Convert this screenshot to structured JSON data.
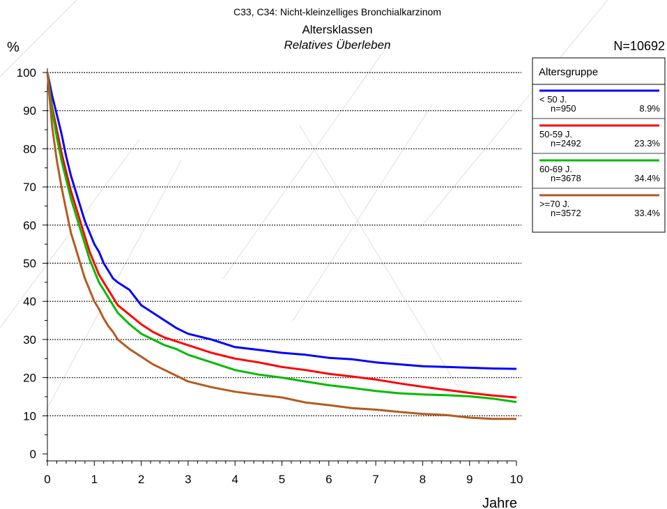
{
  "chart_data": {
    "type": "line",
    "title": "C33, C34: Nicht-kleinzelliges Bronchialkarzinom",
    "subtitle": "Altersklassen",
    "subtitle2": "Relatives Überleben",
    "n_total": "N=10692",
    "ylabel": "%",
    "xlabel": "Jahre",
    "xlim": [
      0,
      10
    ],
    "ylim": [
      0,
      100
    ],
    "x_ticks": [
      "0",
      "1",
      "2",
      "3",
      "4",
      "5",
      "6",
      "7",
      "8",
      "9",
      "10"
    ],
    "y_ticks": [
      "0",
      "10",
      "20",
      "30",
      "40",
      "50",
      "60",
      "70",
      "80",
      "90",
      "100"
    ],
    "grid": true,
    "legend_placement": "top-right",
    "legend_title": "Altersgruppe",
    "series": [
      {
        "name": "< 50 J.",
        "n": "n=950",
        "share": "8.9%",
        "color": "#0000ff",
        "x": [
          0,
          0.1,
          0.2,
          0.3,
          0.4,
          0.5,
          0.6,
          0.7,
          0.8,
          0.9,
          1.0,
          1.1,
          1.2,
          1.3,
          1.4,
          1.5,
          1.75,
          2.0,
          2.25,
          2.5,
          2.75,
          3.0,
          3.5,
          4.0,
          4.5,
          5.0,
          5.5,
          6.0,
          6.5,
          7.0,
          7.5,
          8.0,
          8.5,
          9.0,
          9.5,
          10.0
        ],
        "y": [
          100,
          94,
          89,
          84,
          78,
          73,
          69,
          65,
          61,
          58,
          55,
          53,
          50,
          48,
          46,
          45,
          43,
          39,
          37,
          35,
          33,
          31.5,
          30,
          28,
          27.3,
          26.5,
          26,
          25.2,
          24.8,
          24,
          23.5,
          23,
          22.8,
          22.6,
          22.4,
          22.3
        ]
      },
      {
        "name": "50-59 J.",
        "n": "n=2492",
        "share": "23.3%",
        "color": "#ff0000",
        "x": [
          0,
          0.1,
          0.2,
          0.3,
          0.4,
          0.5,
          0.6,
          0.7,
          0.8,
          0.9,
          1.0,
          1.1,
          1.2,
          1.3,
          1.4,
          1.5,
          1.75,
          2.0,
          2.25,
          2.5,
          2.75,
          3.0,
          3.5,
          4.0,
          4.5,
          5.0,
          5.5,
          6.0,
          6.5,
          7.0,
          7.5,
          8.0,
          8.5,
          9.0,
          9.5,
          10.0
        ],
        "y": [
          100,
          91,
          85,
          79,
          74,
          69,
          65,
          61,
          57,
          53,
          50,
          47,
          45,
          43,
          41,
          39,
          36.5,
          34,
          32,
          30.5,
          29.5,
          28.5,
          26.5,
          25,
          24,
          22.8,
          22,
          21,
          20.3,
          19.5,
          18.5,
          17.6,
          16.8,
          16,
          15.3,
          14.8
        ]
      },
      {
        "name": "60-69 J.",
        "n": "n=3678",
        "share": "34.4%",
        "color": "#00bb00",
        "x": [
          0,
          0.1,
          0.2,
          0.3,
          0.4,
          0.5,
          0.6,
          0.7,
          0.8,
          0.9,
          1.0,
          1.1,
          1.2,
          1.3,
          1.4,
          1.5,
          1.75,
          2.0,
          2.25,
          2.5,
          2.75,
          3.0,
          3.5,
          4.0,
          4.5,
          5.0,
          5.5,
          6.0,
          6.5,
          7.0,
          7.5,
          8.0,
          8.5,
          9.0,
          9.5,
          10.0
        ],
        "y": [
          100,
          90,
          83,
          77,
          72,
          67,
          63,
          59,
          55,
          51,
          48,
          45,
          43,
          41,
          39,
          37,
          34,
          31.5,
          30,
          28.5,
          27.5,
          26,
          24,
          22,
          20.8,
          20,
          19,
          18,
          17.3,
          16.5,
          15.9,
          15.6,
          15.4,
          15.1,
          14.5,
          13.6
        ]
      },
      {
        "name": ">=70 J.",
        "n": "n=3572",
        "share": "33.4%",
        "color": "#b35a1f",
        "x": [
          0,
          0.1,
          0.2,
          0.3,
          0.4,
          0.5,
          0.6,
          0.7,
          0.8,
          0.9,
          1.0,
          1.1,
          1.2,
          1.3,
          1.4,
          1.5,
          1.75,
          2.0,
          2.25,
          2.5,
          2.75,
          3.0,
          3.5,
          4.0,
          4.5,
          5.0,
          5.5,
          6.0,
          6.5,
          7.0,
          7.5,
          8.0,
          8.5,
          9.0,
          9.5,
          10.0
        ],
        "y": [
          100,
          86,
          77,
          70,
          64,
          58,
          54,
          50,
          46,
          43,
          40,
          38,
          35.5,
          33.5,
          32,
          30,
          27.5,
          25.5,
          23.5,
          22,
          20.5,
          19,
          17.5,
          16.3,
          15.5,
          14.8,
          13.5,
          12.8,
          12,
          11.6,
          11,
          10.5,
          10.2,
          9.5,
          9.2,
          9.2
        ]
      }
    ]
  }
}
